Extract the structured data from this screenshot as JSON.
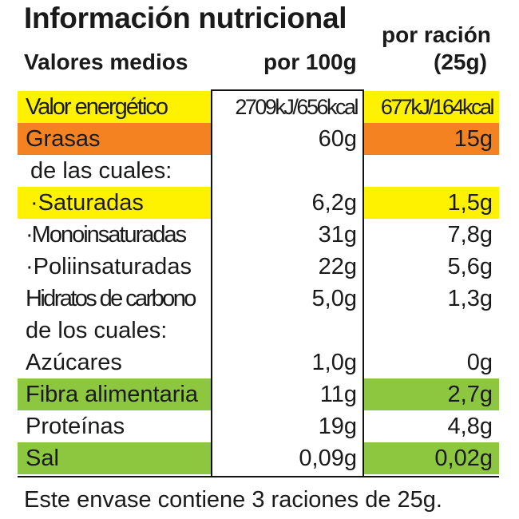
{
  "header": {
    "title": "Información nutricional",
    "col_label": "Valores medios",
    "col_100g": "por 100g",
    "col_serving_line1": "por ración",
    "col_serving_line2": "(25g)"
  },
  "colors": {
    "yellow": "#fff200",
    "orange": "#f58220",
    "green": "#8dc63f"
  },
  "rows": [
    {
      "label": "Valor energético",
      "per100": "2709kJ/656kcal",
      "perServing": "677kJ/164kcal",
      "highlight": "yellow"
    },
    {
      "label": "Grasas",
      "per100": "60g",
      "perServing": "15g",
      "highlight": "orange"
    },
    {
      "label": "de las cuales:",
      "per100": "",
      "perServing": "",
      "highlight": ""
    },
    {
      "label": "·Saturadas",
      "per100": "6,2g",
      "perServing": "1,5g",
      "highlight": "yellow"
    },
    {
      "label": "·Monoinsaturadas",
      "per100": "31g",
      "perServing": "7,8g",
      "highlight": ""
    },
    {
      "label": "·Poliinsaturadas",
      "per100": "22g",
      "perServing": "5,6g",
      "highlight": ""
    },
    {
      "label": "Hidratos de carbono",
      "per100": "5,0g",
      "perServing": "1,3g",
      "highlight": ""
    },
    {
      "label": "de los cuales:",
      "per100": "",
      "perServing": "",
      "highlight": ""
    },
    {
      "label": "Azúcares",
      "per100": "1,0g",
      "perServing": "0g",
      "highlight": ""
    },
    {
      "label": "Fibra alimentaria",
      "per100": "11g",
      "perServing": "2,7g",
      "highlight": "green"
    },
    {
      "label": "Proteínas",
      "per100": "19g",
      "perServing": "4,8g",
      "highlight": ""
    },
    {
      "label": "Sal",
      "per100": "0,09g",
      "perServing": "0,02g",
      "highlight": "green"
    }
  ],
  "footer": "Este envase contiene 3 raciones de 25g."
}
